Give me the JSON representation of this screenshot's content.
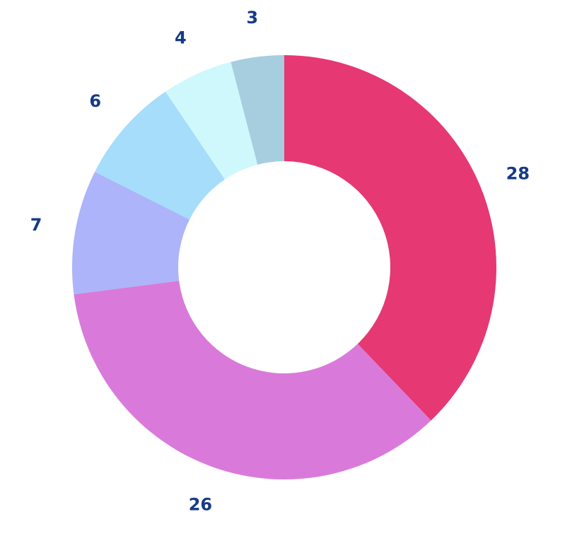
{
  "chart_data": {
    "type": "pie",
    "donut": true,
    "start_angle_deg": 0,
    "direction": "clockwise",
    "slices": [
      {
        "value": 28,
        "label": "28",
        "color": "#e63872"
      },
      {
        "value": 26,
        "label": "26",
        "color": "#d97adb"
      },
      {
        "value": 7,
        "label": "7",
        "color": "#adb4f9"
      },
      {
        "value": 6,
        "label": "6",
        "color": "#a5ddfa"
      },
      {
        "value": 4,
        "label": "4",
        "color": "#cff8fd"
      },
      {
        "value": 3,
        "label": "3",
        "color": "#a7cedf"
      }
    ],
    "label_color": "#163a85",
    "legend": "none",
    "title": ""
  }
}
